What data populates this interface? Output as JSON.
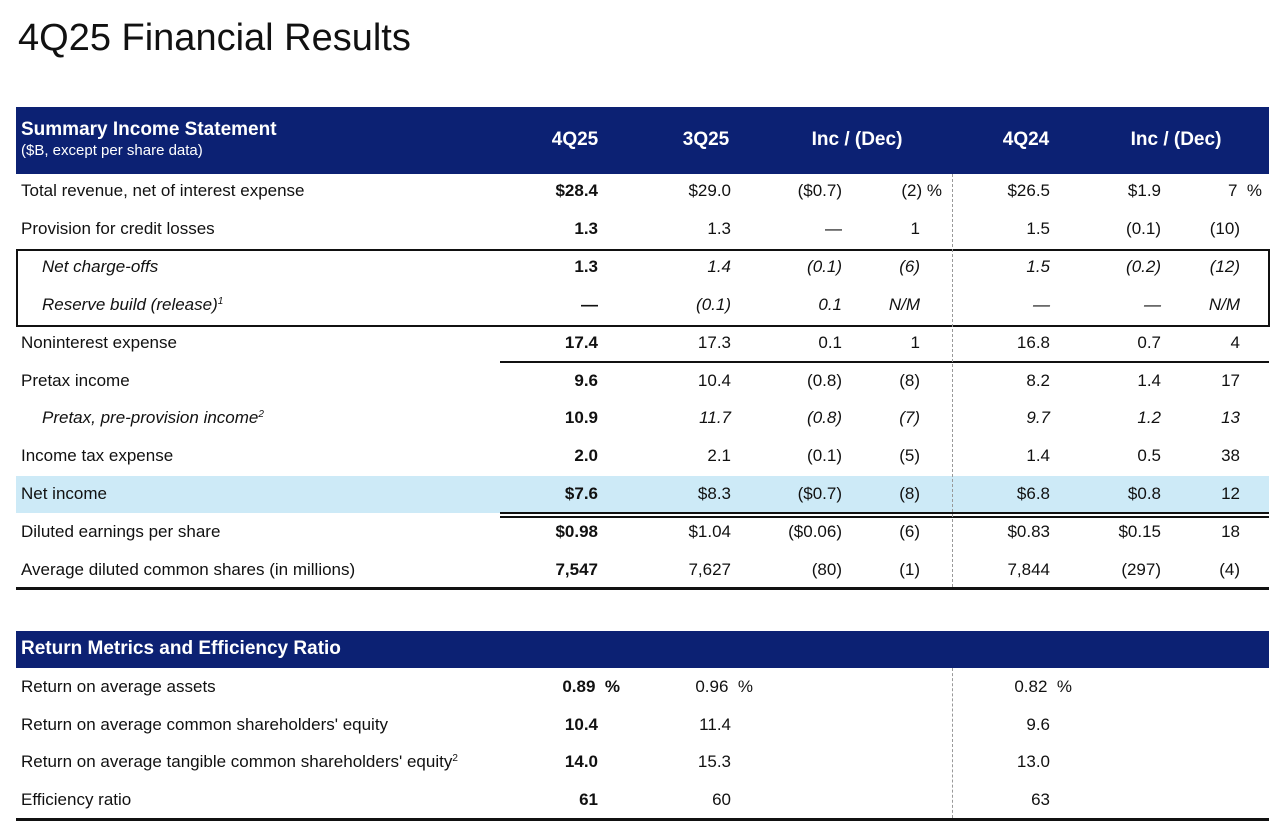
{
  "title": "4Q25 Financial Results",
  "income": {
    "header": {
      "title": "Summary Income Statement",
      "subtitle": "($B, except per share data)",
      "columns": [
        "4Q25",
        "3Q25",
        "Inc / (Dec)",
        "4Q24",
        "Inc / (Dec)"
      ]
    },
    "rows": [
      {
        "label": "Total revenue, net of interest expense",
        "cells": [
          "$28.4",
          "$29.0",
          "($0.7)",
          "(2) %",
          "$26.5",
          "$1.9",
          "7  %"
        ]
      },
      {
        "label": "Provision for credit losses",
        "cells": [
          "1.3",
          "1.3",
          "—",
          "1",
          "1.5",
          "(0.1)",
          "(10)"
        ]
      },
      {
        "label": "Net charge-offs",
        "italic": true,
        "cells": [
          "1.3",
          "1.4",
          "(0.1)",
          "(6)",
          "1.5",
          "(0.2)",
          "(12)"
        ]
      },
      {
        "label": "Reserve build (release)",
        "sup": "1",
        "italic": true,
        "cells": [
          "—",
          "(0.1)",
          "0.1",
          "N/M",
          "—",
          "—",
          "N/M"
        ]
      },
      {
        "label": "Noninterest expense",
        "cells": [
          "17.4",
          "17.3",
          "0.1",
          "1",
          "16.8",
          "0.7",
          "4"
        ]
      },
      {
        "label": "Pretax income",
        "cells": [
          "9.6",
          "10.4",
          "(0.8)",
          "(8)",
          "8.2",
          "1.4",
          "17"
        ]
      },
      {
        "label": "Pretax, pre-provision income",
        "sup": "2",
        "italic": true,
        "cells": [
          "10.9",
          "11.7",
          "(0.8)",
          "(7)",
          "9.7",
          "1.2",
          "13"
        ]
      },
      {
        "label": "Income tax expense",
        "cells": [
          "2.0",
          "2.1",
          "(0.1)",
          "(5)",
          "1.4",
          "0.5",
          "38"
        ]
      },
      {
        "label": "Net income",
        "highlight": true,
        "cells": [
          "$7.6",
          "$8.3",
          "($0.7)",
          "(8)",
          "$6.8",
          "$0.8",
          "12"
        ]
      },
      {
        "label": "Diluted earnings per share",
        "cells": [
          "$0.98",
          "$1.04",
          "($0.06)",
          "(6)",
          "$0.83",
          "$0.15",
          "18"
        ]
      },
      {
        "label": "Average diluted common shares (in millions)",
        "cells": [
          "7,547",
          "7,627",
          "(80)",
          "(1)",
          "7,844",
          "(297)",
          "(4)"
        ]
      }
    ]
  },
  "returns": {
    "header": {
      "title": "Return Metrics and Efficiency Ratio"
    },
    "rows": [
      {
        "label": "Return on average assets",
        "cells": [
          "0.89  %",
          "0.96  %",
          "0.82  %"
        ]
      },
      {
        "label": "Return on average common shareholders' equity",
        "cells": [
          "10.4",
          "11.4",
          "9.6"
        ]
      },
      {
        "label": "Return on average tangible common shareholders' equity",
        "sup": "2",
        "cells": [
          "14.0",
          "15.3",
          "13.0"
        ]
      },
      {
        "label": "Efficiency ratio",
        "cells": [
          "61",
          "60",
          "63"
        ]
      }
    ]
  }
}
